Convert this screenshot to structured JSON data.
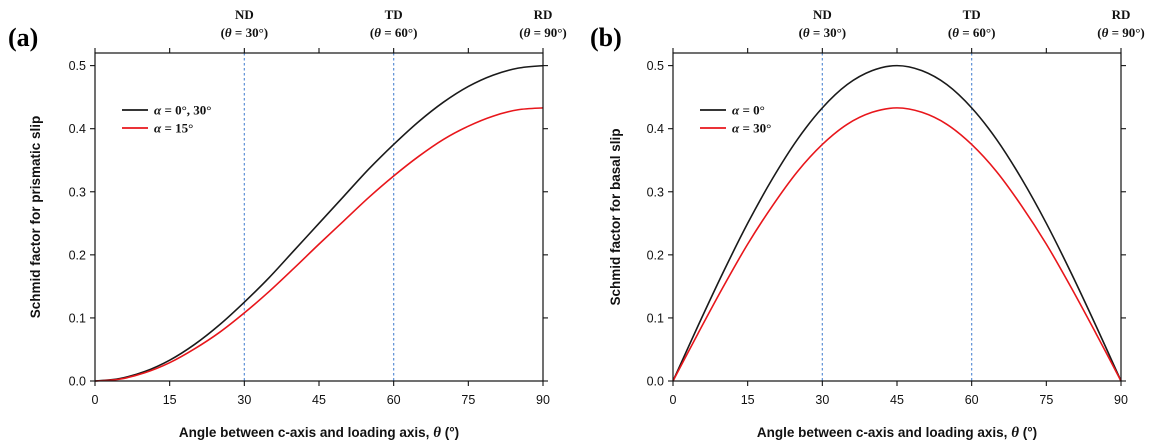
{
  "chart_data": [
    {
      "type": "line",
      "panel_label": "(a)",
      "xlabel_main": "Angle between c-axis and loading axis, ",
      "xlabel_symbol": "θ",
      "xlabel_unit": " (°)",
      "ylabel": "Schmid factor for prismatic slip",
      "xlim": [
        0,
        90
      ],
      "ylim": [
        0,
        0.52
      ],
      "x_ticks": [
        0,
        15,
        30,
        45,
        60,
        75,
        90
      ],
      "x_tick_labels": [
        "0",
        "15",
        "30",
        "45",
        "60",
        "75",
        "90"
      ],
      "y_ticks": [
        0,
        0.1,
        0.2,
        0.3,
        0.4,
        0.5
      ],
      "y_tick_labels": [
        "0.0",
        "0.1",
        "0.2",
        "0.3",
        "0.4",
        "0.5"
      ],
      "grid": false,
      "legend_position": "upper-left",
      "reference_lines": [
        {
          "x": 30,
          "name": "ND",
          "sub_symbol": "θ",
          "sub_rest": " = 30°)"
        },
        {
          "x": 60,
          "name": "TD",
          "sub_symbol": "θ",
          "sub_rest": " = 60°)"
        },
        {
          "x": 90,
          "name": "RD",
          "sub_symbol": "θ",
          "sub_rest": " = 90°)"
        }
      ],
      "series": [
        {
          "legend_symbol": "α",
          "legend_rest": " = 0°, 30°",
          "color": "#1a1a1a",
          "x": [
            0,
            5,
            10,
            15,
            20,
            25,
            30,
            35,
            40,
            45,
            50,
            55,
            60,
            65,
            70,
            75,
            80,
            85,
            90
          ],
          "y": [
            0,
            0.004,
            0.015,
            0.033,
            0.058,
            0.089,
            0.125,
            0.164,
            0.207,
            0.25,
            0.293,
            0.336,
            0.375,
            0.411,
            0.442,
            0.467,
            0.485,
            0.496,
            0.5
          ]
        },
        {
          "legend_symbol": "α",
          "legend_rest": " = 15°",
          "color": "#e8161b",
          "x": [
            0,
            5,
            10,
            15,
            20,
            25,
            30,
            35,
            40,
            45,
            50,
            55,
            60,
            65,
            70,
            75,
            80,
            85,
            90
          ],
          "y": [
            0,
            0.003,
            0.013,
            0.029,
            0.051,
            0.077,
            0.108,
            0.142,
            0.179,
            0.217,
            0.254,
            0.291,
            0.325,
            0.356,
            0.383,
            0.404,
            0.42,
            0.43,
            0.433
          ]
        }
      ]
    },
    {
      "type": "line",
      "panel_label": "(b)",
      "xlabel_main": "Angle between c-axis and loading axis, ",
      "xlabel_symbol": "θ",
      "xlabel_unit": " (°)",
      "ylabel": "Schmid factor for basal slip",
      "xlim": [
        0,
        90
      ],
      "ylim": [
        0,
        0.52
      ],
      "x_ticks": [
        0,
        15,
        30,
        45,
        60,
        75,
        90
      ],
      "x_tick_labels": [
        "0",
        "15",
        "30",
        "45",
        "60",
        "75",
        "90"
      ],
      "y_ticks": [
        0,
        0.1,
        0.2,
        0.3,
        0.4,
        0.5
      ],
      "y_tick_labels": [
        "0.0",
        "0.1",
        "0.2",
        "0.3",
        "0.4",
        "0.5"
      ],
      "grid": false,
      "legend_position": "upper-left",
      "reference_lines": [
        {
          "x": 30,
          "name": "ND",
          "sub_symbol": "θ",
          "sub_rest": " = 30°)"
        },
        {
          "x": 60,
          "name": "TD",
          "sub_symbol": "θ",
          "sub_rest": " = 60°)"
        },
        {
          "x": 90,
          "name": "RD",
          "sub_symbol": "θ",
          "sub_rest": " = 90°)"
        }
      ],
      "series": [
        {
          "legend_symbol": "α",
          "legend_rest": " = 0°",
          "color": "#1a1a1a",
          "x": [
            0,
            5,
            10,
            15,
            20,
            25,
            30,
            35,
            40,
            45,
            50,
            55,
            60,
            65,
            70,
            75,
            80,
            85,
            90
          ],
          "y": [
            0,
            0.087,
            0.171,
            0.25,
            0.321,
            0.383,
            0.433,
            0.47,
            0.492,
            0.5,
            0.492,
            0.47,
            0.433,
            0.383,
            0.321,
            0.25,
            0.171,
            0.087,
            0
          ]
        },
        {
          "legend_symbol": "α",
          "legend_rest": " = 30°",
          "color": "#e8161b",
          "x": [
            0,
            5,
            10,
            15,
            20,
            25,
            30,
            35,
            40,
            45,
            50,
            55,
            60,
            65,
            70,
            75,
            80,
            85,
            90
          ],
          "y": [
            0,
            0.075,
            0.148,
            0.217,
            0.278,
            0.332,
            0.375,
            0.407,
            0.426,
            0.433,
            0.426,
            0.407,
            0.375,
            0.332,
            0.278,
            0.217,
            0.148,
            0.075,
            0
          ]
        }
      ]
    }
  ]
}
